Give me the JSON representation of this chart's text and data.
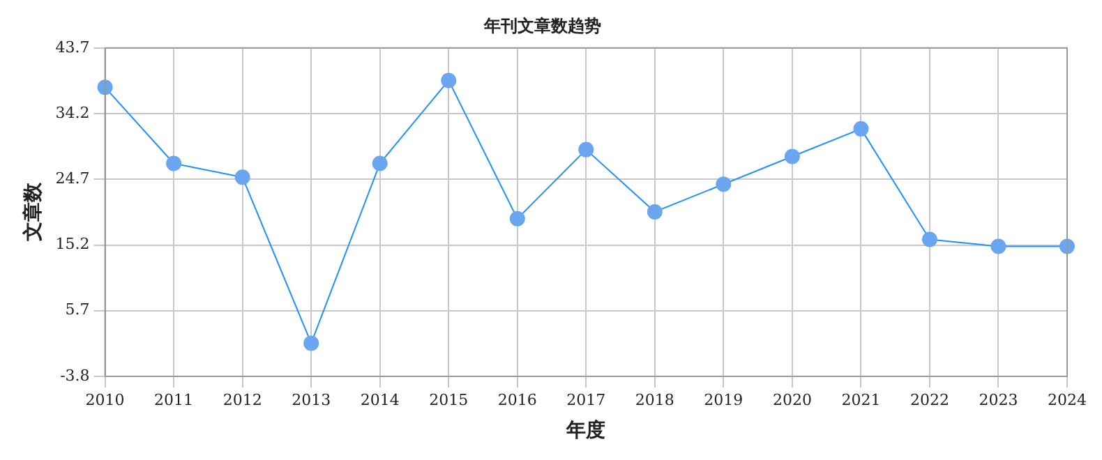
{
  "chart_data": {
    "type": "line",
    "title": "年刊文章数趋势",
    "xlabel": "年度",
    "ylabel": "文章数",
    "categories": [
      "2010",
      "2011",
      "2012",
      "2013",
      "2014",
      "2015",
      "2016",
      "2017",
      "2018",
      "2019",
      "2020",
      "2021",
      "2022",
      "2023",
      "2024"
    ],
    "series": [
      {
        "color": "#1e90ff",
        "values": [
          38,
          27,
          25,
          1,
          27,
          39,
          19,
          29,
          20,
          24,
          28,
          32,
          16,
          15,
          15
        ]
      }
    ],
    "ylim": [
      -3.8,
      43.7
    ],
    "yticks": [
      -3.8,
      5.7,
      15.2,
      24.7,
      34.2,
      43.7
    ],
    "grid": true,
    "legend": false,
    "marker": "circle",
    "line_style": "solid"
  }
}
